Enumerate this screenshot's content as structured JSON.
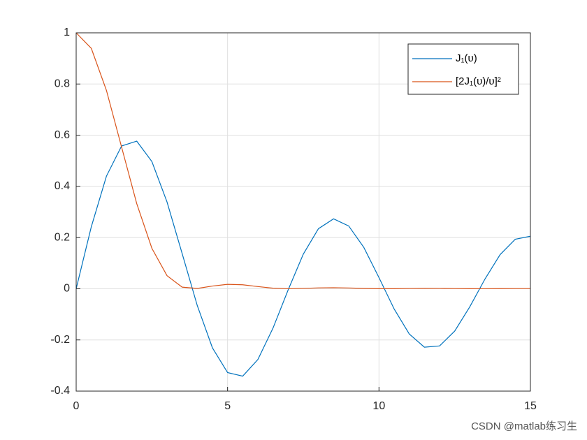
{
  "chart_data": {
    "type": "line",
    "x": [
      0,
      0.5,
      1,
      1.5,
      2,
      2.5,
      3,
      3.5,
      4,
      4.5,
      5,
      5.5,
      6,
      6.5,
      7,
      7.5,
      8,
      8.5,
      9,
      9.5,
      10,
      10.5,
      11,
      11.5,
      12,
      12.5,
      13,
      13.5,
      14,
      14.5,
      15
    ],
    "series": [
      {
        "name": "J₁(υ)",
        "color": "#0072BD",
        "values": [
          0,
          0.2423,
          0.4401,
          0.5579,
          0.5767,
          0.4971,
          0.3391,
          0.1374,
          -0.066,
          -0.2311,
          -0.3276,
          -0.3414,
          -0.2767,
          -0.1538,
          -0.0047,
          0.1352,
          0.2346,
          0.2731,
          0.2453,
          0.1613,
          0.0435,
          -0.0789,
          -0.1768,
          -0.2284,
          -0.2234,
          -0.1655,
          -0.0703,
          0.038,
          0.1334,
          0.1934,
          0.2051
        ]
      },
      {
        "name": "[2J₁(υ)/υ]²",
        "color": "#D95319",
        "values": [
          1,
          0.9393,
          0.7748,
          0.5534,
          0.3326,
          0.1581,
          0.0511,
          0.0062,
          0.0011,
          0.0105,
          0.0172,
          0.0154,
          0.0085,
          0.0022,
          0,
          0.0013,
          0.0034,
          0.0041,
          0.003,
          0.0012,
          0.0001,
          0.0002,
          0.001,
          0.0016,
          0.0014,
          0.0007,
          0.0001,
          0,
          0.0004,
          0.0007,
          0.0007
        ]
      }
    ],
    "xlim": [
      0,
      15
    ],
    "xticks": [
      0,
      5,
      10,
      15
    ],
    "ylim": [
      -0.4,
      1
    ],
    "yticks": [
      -0.4,
      -0.2,
      0,
      0.2,
      0.4,
      0.6,
      0.8,
      1
    ],
    "grid": true,
    "legend": "northeast"
  },
  "watermark": "CSDN @matlab练习生"
}
